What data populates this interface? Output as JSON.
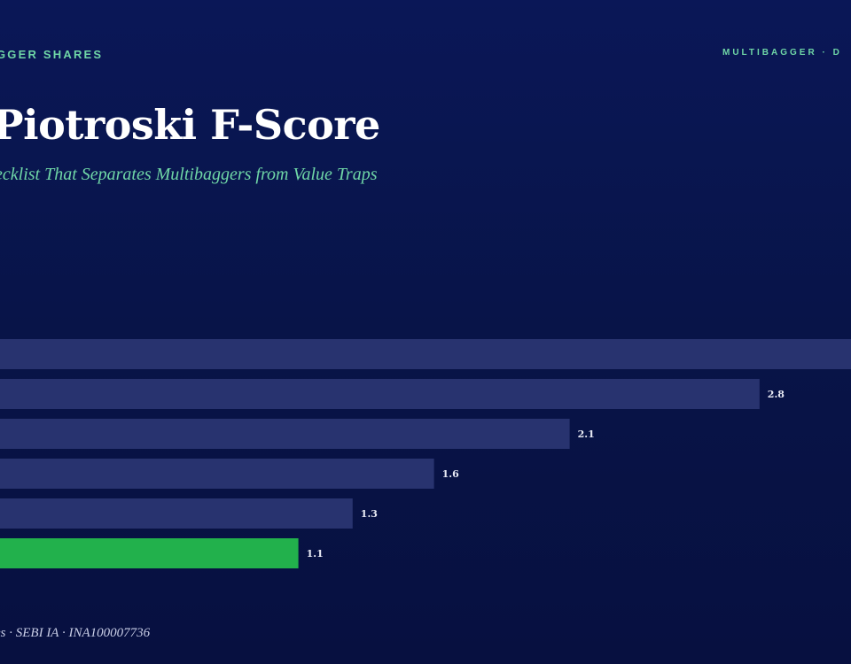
{
  "header": {
    "brand_left": "GGER SHARES",
    "brand_right": "MULTIBAGGER · D",
    "title": "Piotroski F-Score",
    "subtitle": "ecklist That Separates Multibaggers from Value Traps"
  },
  "footer": {
    "text": "es · SEBI IA · INA100007736"
  },
  "colors": {
    "bar_default": "#28336f",
    "bar_highlight": "#22b14c",
    "label": "#e8eaf4"
  },
  "chart_data": {
    "type": "bar",
    "orientation": "horizontal",
    "categories": [
      "",
      "",
      "",
      "",
      "",
      ""
    ],
    "values": [
      3.52,
      2.8,
      2.1,
      1.6,
      1.3,
      1.1
    ],
    "data_labels": [
      "",
      "2.8",
      "2.1",
      "1.6",
      "1.3",
      "1.1"
    ],
    "highlight_index": 5,
    "title": "",
    "xlabel": "",
    "ylabel": "",
    "xlim": [
      0,
      3.5
    ],
    "grid": false,
    "legend": "none"
  }
}
